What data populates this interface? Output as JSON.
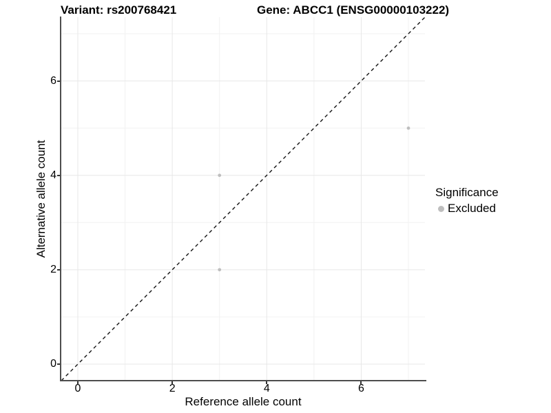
{
  "figure": {
    "title_left": "Variant: rs200768421",
    "title_right": "Gene: ABCC1 (ENSG00000103222)"
  },
  "chart_data": {
    "type": "scatter",
    "title_left": "Variant: rs200768421",
    "title_right": "Gene: ABCC1 (ENSG00000103222)",
    "xlabel": "Reference allele count",
    "ylabel": "Alternative allele count",
    "xlim": [
      -0.35,
      7.35
    ],
    "ylim": [
      -0.35,
      7.35
    ],
    "x_ticks": [
      0,
      2,
      4,
      6
    ],
    "y_ticks": [
      0,
      2,
      4,
      6
    ],
    "grid_major": [
      0,
      2,
      4,
      6
    ],
    "grid_minor": [
      1,
      3,
      5,
      7
    ],
    "grid_on": true,
    "series": [
      {
        "name": "Excluded",
        "color": "#bebebe",
        "points": [
          [
            3,
            2
          ],
          [
            3,
            4
          ],
          [
            7,
            5
          ]
        ]
      }
    ],
    "reference_line": {
      "slope": 1,
      "intercept": 0,
      "style": "dashed",
      "color": "#111111"
    },
    "legend": {
      "title": "Significance",
      "position": "right",
      "items": [
        {
          "label": "Excluded",
          "color": "#bebebe"
        }
      ]
    },
    "colors": {
      "grid_major": "#e7e7e7",
      "grid_minor": "#f2f2f2",
      "axis_line": "#4d4d4d",
      "tick_mark": "#333333",
      "text": "#000000"
    }
  }
}
